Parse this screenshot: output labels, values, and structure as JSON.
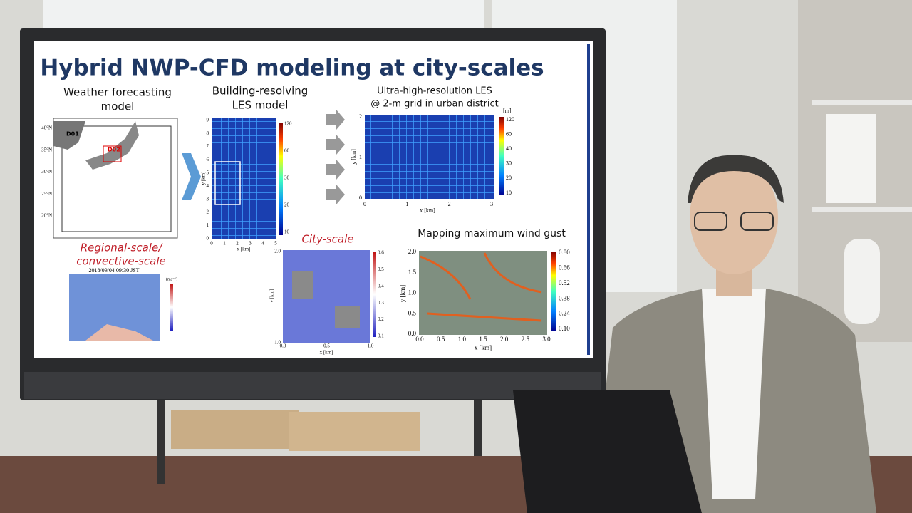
{
  "slide": {
    "title": "Hybrid NWP-CFD modeling at city-scales",
    "weather": {
      "label": [
        "Weather forecasting",
        "model"
      ],
      "lat_labels": [
        "40°N",
        "35°N",
        "30°N",
        "25°N",
        "20°N"
      ],
      "domains": [
        "D01",
        "D02"
      ],
      "caption": [
        "Regional-scale/",
        "convective-scale"
      ],
      "timestamp": "2018/09/04 09:30 JST",
      "unit": "(ms⁻¹)"
    },
    "les": {
      "label": [
        "Building-resolving",
        "LES model"
      ],
      "yticks": [
        "0",
        "1",
        "2",
        "3",
        "4",
        "5",
        "6",
        "7",
        "8",
        "9"
      ],
      "xticks": [
        "0",
        "1",
        "2",
        "3",
        "4",
        "5"
      ],
      "xlabel": "x [km]",
      "ylabel": "y [km]",
      "cbar": [
        "120",
        "60",
        "30",
        "20",
        "10"
      ]
    },
    "ultra": {
      "label": [
        "Ultra-high-resolution LES",
        "@ 2-m grid in urban district"
      ],
      "unit": "[m]",
      "cbar": [
        "120",
        "60",
        "40",
        "30",
        "20",
        "10"
      ],
      "xticks": [
        "0",
        "1",
        "2",
        "3"
      ],
      "yticks": [
        "0",
        "1",
        "2"
      ],
      "xlabel": "x [km]",
      "ylabel": "y [km]"
    },
    "city": {
      "label": "City-scale",
      "yticks": [
        "1.0",
        "2.0"
      ],
      "xticks": [
        "0.0",
        "0.5",
        "1.0"
      ],
      "xlabel": "x [km]",
      "ylabel": "y [km]",
      "cbar": [
        "0.6",
        "0.5",
        "0.4",
        "0.3",
        "0.2",
        "0.1"
      ]
    },
    "gust": {
      "title": "Mapping maximum wind gust",
      "yticks": [
        "0.0",
        "0.5",
        "1.0",
        "1.5",
        "2.0"
      ],
      "xticks": [
        "0.0",
        "0.5",
        "1.0",
        "1.5",
        "2.0",
        "2.5",
        "3.0"
      ],
      "xlabel": "x [km]",
      "ylabel": "y [km]",
      "cbar": [
        "0.80",
        "0.66",
        "0.52",
        "0.38",
        "0.24",
        "0.10"
      ]
    }
  }
}
